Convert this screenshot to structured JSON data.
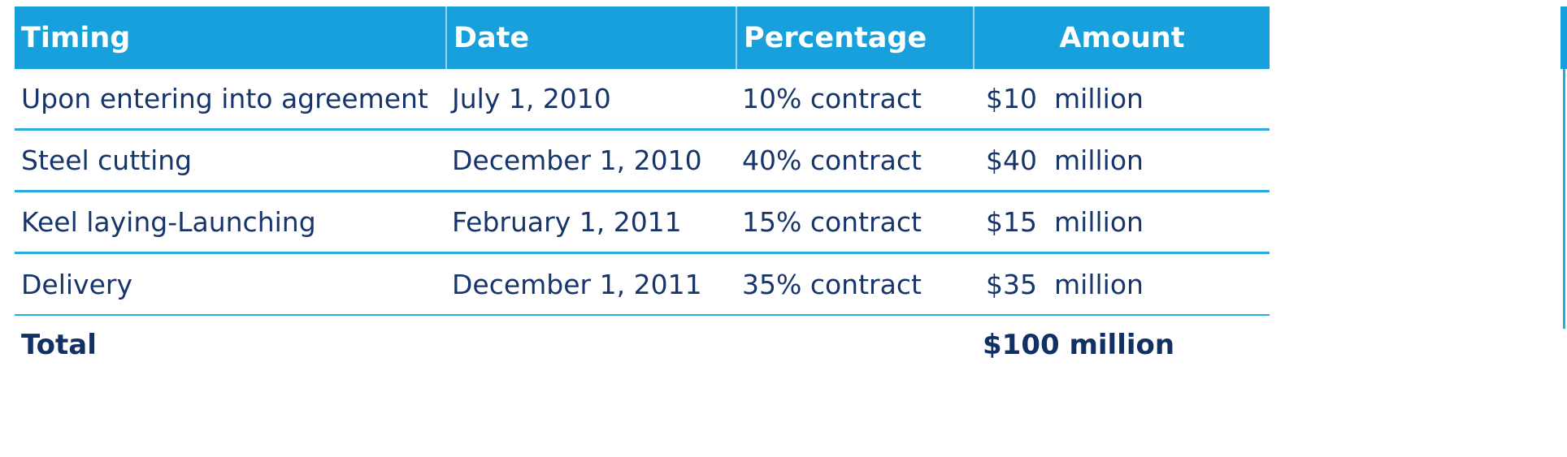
{
  "table": {
    "columns": [
      {
        "label": "Timing"
      },
      {
        "label": "Date"
      },
      {
        "label": "Percentage"
      },
      {
        "label": "Amount"
      }
    ],
    "rows": [
      {
        "timing": "Upon entering into agreement",
        "date": "July 1, 2010",
        "percentage": "10% contract",
        "amount_value": "$10",
        "amount_unit": "million"
      },
      {
        "timing": "Steel cutting",
        "date": "December 1, 2010",
        "percentage": "40% contract",
        "amount_value": "$40",
        "amount_unit": "million"
      },
      {
        "timing": "Keel laying-Launching",
        "date": "February 1, 2011",
        "percentage": "15% contract",
        "amount_value": "$15",
        "amount_unit": "million"
      },
      {
        "timing": "Delivery",
        "date": "December 1, 2011",
        "percentage": "35% contract",
        "amount_value": "$35",
        "amount_unit": "million"
      }
    ],
    "total": {
      "label": "Total",
      "amount": "$100 million"
    }
  },
  "colors": {
    "header_bg": "#18a0dc",
    "row_line": "#29abe2",
    "body_text": "#17356b"
  }
}
